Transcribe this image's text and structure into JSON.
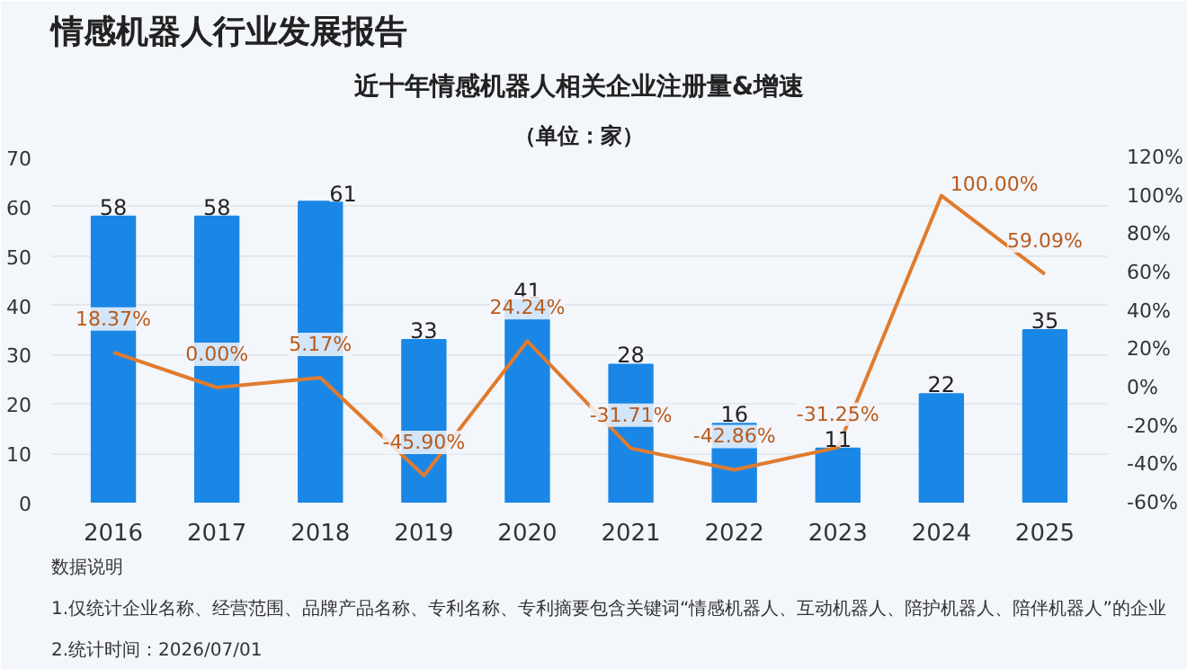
{
  "chart_data": {
    "type": "bar",
    "title": "近十年情感机器人相关企业注册量&增速",
    "subtitle": "（单位：家）",
    "categories": [
      "2016",
      "2017",
      "2018",
      "2019",
      "2020",
      "2021",
      "2022",
      "2023",
      "2024",
      "2025"
    ],
    "series": [
      {
        "color": "#1a87e6",
        "values": [
          58,
          58,
          61,
          33,
          41,
          28,
          16,
          11,
          22,
          35
        ]
      },
      {
        "type": "line",
        "axis": "y2",
        "color": "#e07b2e",
        "values": [
          18.37,
          0.0,
          5.17,
          -45.9,
          24.24,
          -31.71,
          -42.86,
          -31.25,
          100.0,
          59.09
        ],
        "value_labels": [
          "18.37%",
          "0.00%",
          "5.17%",
          "-45.90%",
          "24.24%",
          "-31.71%",
          "-42.86%",
          "-31.25%",
          "100.00%",
          "59.09%"
        ]
      }
    ],
    "data_labels": true,
    "ylim": [
      0,
      70
    ],
    "yticks": [
      0,
      10,
      20,
      30,
      40,
      50,
      60,
      70
    ],
    "y2lim": [
      -60,
      120
    ],
    "y2ticks": [
      {
        "value": -60,
        "label": "-60%"
      },
      {
        "value": -40,
        "label": "-40%"
      },
      {
        "value": -20,
        "label": "-20%"
      },
      {
        "value": 0,
        "label": "0%"
      },
      {
        "value": 20,
        "label": "20%"
      },
      {
        "value": 40,
        "label": "40%"
      },
      {
        "value": 60,
        "label": "60%"
      },
      {
        "value": 80,
        "label": "80%"
      },
      {
        "value": 100,
        "label": "100%"
      },
      {
        "value": 120,
        "label": "120%"
      }
    ],
    "grid": "y",
    "marker": "none",
    "line_style": "solid",
    "annotations": [
      "情感机器人行业发展报告",
      "数据说明",
      "1.仅统计企业名称、经营范围、品牌产品名称、专利名称、专利摘要包含关键词“情感机器人、互动机器人、陪护机器人、陪伴机器人”的企业",
      "2.统计时间：2026/07/01"
    ]
  }
}
